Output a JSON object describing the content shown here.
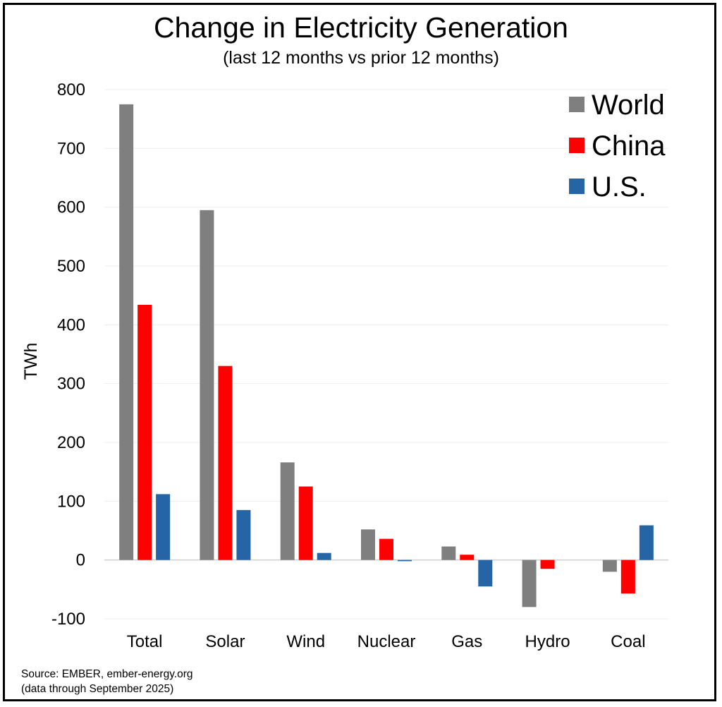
{
  "chart_data": {
    "type": "bar",
    "title": "Change in Electricity Generation",
    "subtitle": "(last 12 months vs prior 12 months)",
    "ylabel": "TWh",
    "xlabel": "",
    "categories": [
      "Total",
      "Solar",
      "Wind",
      "Nuclear",
      "Gas",
      "Hydro",
      "Coal"
    ],
    "series": [
      {
        "name": "World",
        "color": "#7f7f7f",
        "values": [
          775,
          595,
          166,
          52,
          23,
          -80,
          -20
        ]
      },
      {
        "name": "China",
        "color": "#ff0000",
        "values": [
          434,
          330,
          125,
          36,
          9,
          -15,
          -57
        ]
      },
      {
        "name": "U.S.",
        "color": "#2565a5",
        "values": [
          112,
          85,
          12,
          -2,
          -45,
          0,
          59
        ]
      }
    ],
    "ylim": [
      -100,
      800
    ],
    "yticks": [
      "-100",
      "0",
      "100",
      "200",
      "300",
      "400",
      "500",
      "600",
      "700",
      "800"
    ],
    "grid": true,
    "legend_position": "top-right"
  },
  "source": {
    "line1": "Source: EMBER, ember-energy.org",
    "line2": "(data through September 2025)"
  }
}
